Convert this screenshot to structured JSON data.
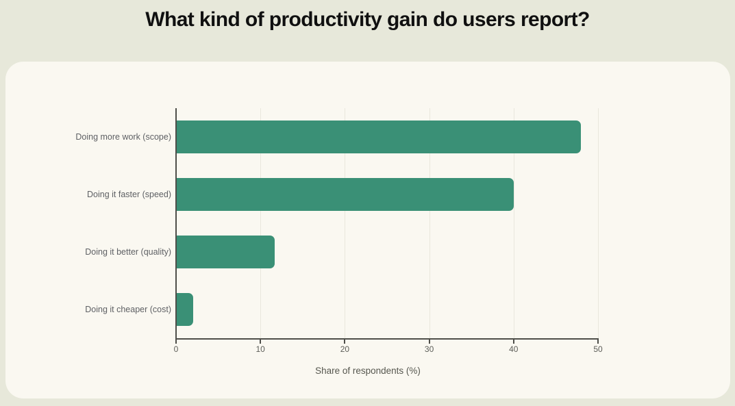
{
  "title": "What kind of productivity gain do users report?",
  "chart_data": {
    "type": "bar",
    "orientation": "horizontal",
    "title": "What kind of productivity gain do users report?",
    "categories": [
      "Doing more work (scope)",
      "Doing it faster (speed)",
      "Doing it better (quality)",
      "Doing it cheaper (cost)"
    ],
    "values": [
      48,
      40,
      11.7,
      2
    ],
    "xlabel": "Share of respondents (%)",
    "x_ticks": [
      0,
      10,
      20,
      30,
      40,
      50
    ],
    "xlim": [
      0,
      50
    ],
    "grid": true,
    "legend": false,
    "bar_color": "#3a9076",
    "axis_color": "#4e4e49",
    "gridline_color": "#e9e7dd",
    "category_label_color": "#5e6064",
    "tick_label_color": "#5c5d58"
  },
  "colors": {
    "page_bg": "#e7e8da",
    "card_bg": "#faf8f1",
    "title_color": "#101010"
  }
}
